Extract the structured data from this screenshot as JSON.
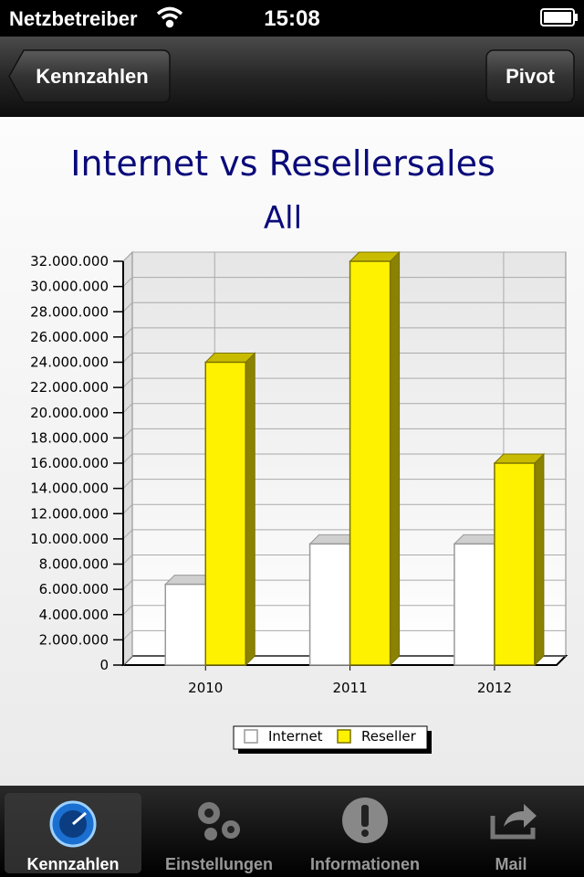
{
  "status_bar": {
    "carrier": "Netzbetreiber",
    "time": "15:08"
  },
  "nav_bar": {
    "back_button": "Kennzahlen",
    "right_button": "Pivot"
  },
  "chart_data": {
    "type": "bar3d",
    "title": "Internet vs Resellersales",
    "subtitle": "All",
    "categories": [
      "2010",
      "2011",
      "2012"
    ],
    "series": [
      {
        "name": "Internet",
        "color": "#ffffff",
        "values": [
          6400000,
          9600000,
          9600000
        ]
      },
      {
        "name": "Reseller",
        "color": "#fff200",
        "values": [
          24000000,
          32000000,
          16000000
        ]
      }
    ],
    "ylim": [
      0,
      32000000
    ],
    "yticks": [
      {
        "value": 0,
        "label": "0"
      },
      {
        "value": 2000000,
        "label": "2.000.000"
      },
      {
        "value": 4000000,
        "label": "4.000.000"
      },
      {
        "value": 6000000,
        "label": "6.000.000"
      },
      {
        "value": 8000000,
        "label": "8.000.000"
      },
      {
        "value": 10000000,
        "label": "10.000.000"
      },
      {
        "value": 12000000,
        "label": "12.000.000"
      },
      {
        "value": 14000000,
        "label": "14.000.000"
      },
      {
        "value": 16000000,
        "label": "16.000.000"
      },
      {
        "value": 18000000,
        "label": "18.000.000"
      },
      {
        "value": 20000000,
        "label": "20.000.000"
      },
      {
        "value": 22000000,
        "label": "22.000.000"
      },
      {
        "value": 24000000,
        "label": "24.000.000"
      },
      {
        "value": 26000000,
        "label": "26.000.000"
      },
      {
        "value": 28000000,
        "label": "28.000.000"
      },
      {
        "value": 30000000,
        "label": "30.000.000"
      },
      {
        "value": 32000000,
        "label": "32.000.000"
      }
    ],
    "grid": true,
    "legend": "bottom"
  },
  "tab_bar": {
    "items": [
      "Kennzahlen",
      "Einstellungen",
      "Informationen",
      "Mail"
    ],
    "selected": 0
  }
}
